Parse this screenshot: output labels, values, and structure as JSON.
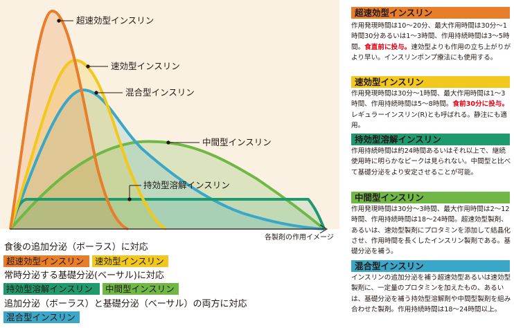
{
  "colors": {
    "ultra_rapid": "#e87d2a",
    "rapid": "#f2c81e",
    "mixed": "#3aa7c9",
    "intermediate": "#6fb845",
    "long_acting": "#1e9a6e",
    "chart_bg": "#fbf1e2",
    "axis": "#333333",
    "highlight": "#e60012"
  },
  "chart": {
    "caption": "各製剤の作用イメージ",
    "labels": {
      "ultra_rapid": "超速効型インスリン",
      "rapid": "速効型インスリン",
      "mixed": "混合型インスリン",
      "intermediate": "中間型インスリン",
      "long_acting": "持効型溶解インスリン"
    }
  },
  "legend": {
    "bolus": {
      "heading": "食後の追加分泌（ボーラス）に対応",
      "tags": [
        "超速効型インスリン",
        "速効型インスリン"
      ]
    },
    "basal": {
      "heading": "常時分泌する基礎分泌(ベーサル)に対応",
      "tags": [
        "持効型溶解インスリン",
        "中間型インスリン"
      ]
    },
    "both": {
      "heading": "追加分泌（ボーラス）と基礎分泌（ベーサル）の両方に対応",
      "tags": [
        "混合型インスリン"
      ]
    }
  },
  "sidebar": [
    {
      "title": "超速効型インスリン",
      "parts": [
        {
          "text": "作用発現時間は10〜20分、最大作用時間は30分〜1時間30分あるいは1〜3時間、作用持続時間は3〜5時間。"
        },
        {
          "text": "食直前に投与。",
          "highlight": true
        },
        {
          "text": "速効型よりも作用の立ち上がりがより早い。インスリンポンプ療法にも使用する。"
        }
      ]
    },
    {
      "title": "速効型インスリン",
      "parts": [
        {
          "text": "作用発現時間は30分〜1時間、最大作用時間は1〜3時間、作用持続時間は5〜8時間。"
        },
        {
          "text": "食前30分に投与。",
          "highlight": true
        },
        {
          "text": "レギュラーインスリン(R)とも呼ばれる。静注にも適用。"
        }
      ]
    },
    {
      "title": "持効型溶解インスリン",
      "parts": [
        {
          "text": "作用持続時間は約24時間あるいはそれ以上で、継続使用時に明らかなピークは見られない。中間型と比べて基礎分泌をより安定させることが可能。"
        }
      ]
    },
    {
      "title": "中間型インスリン",
      "parts": [
        {
          "text": "作用発現時間は30分〜3時間、最大作用時間は2〜12時間、作用持続時間は18〜24時間。超速効型製剤、あるいは、速効型製剤にプロタミンを添加して結晶化させ、作用時間を長くしたインスリン製剤である。基礎分泌を補う。"
        }
      ]
    },
    {
      "title": "混合型インスリン",
      "parts": [
        {
          "text": "インスリンの追加分泌を補う超速効型あるいは速効型製剤に、一定量のプロタミンを加えたもの、あるいは、基礎分泌を補う持効型溶解剤や中間型製剤を組み合わせた製剤。作用持続時間は18〜24時間以上。"
        }
      ]
    }
  ]
}
